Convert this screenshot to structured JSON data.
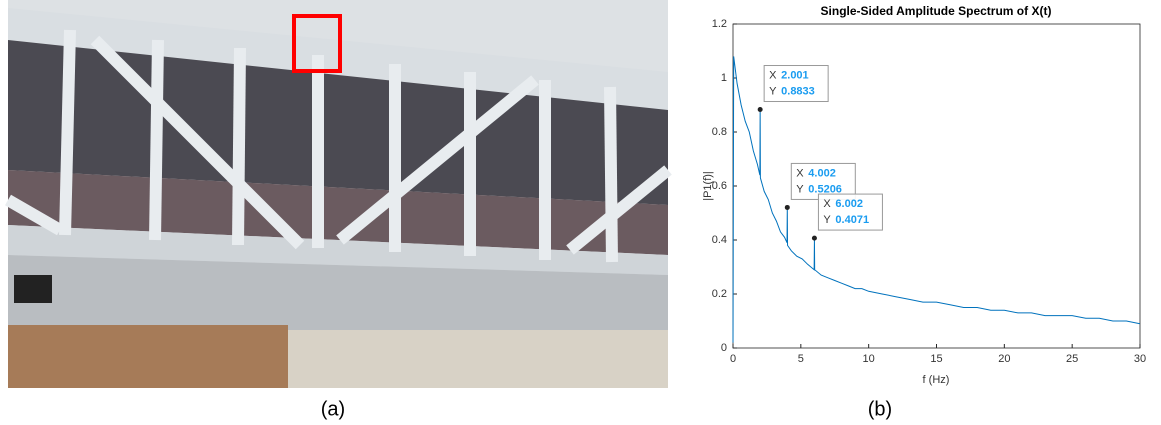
{
  "captions": [
    "(a)",
    "(b)"
  ],
  "chart_data": {
    "type": "line",
    "title": "Single-Sided Amplitude Spectrum of X(t)",
    "x_label": "f (Hz)",
    "y_label": "|P1(f)|",
    "x": [
      0,
      0.05,
      0.3,
      0.6,
      0.9,
      1.2,
      1.5,
      1.8,
      1.98,
      2.001,
      2.02,
      2.3,
      2.6,
      2.9,
      3.2,
      3.5,
      3.8,
      3.98,
      4.002,
      4.02,
      4.3,
      4.7,
      5.1,
      5.5,
      5.98,
      6.002,
      6.02,
      6.5,
      7,
      7.5,
      8,
      8.5,
      9,
      9.5,
      10,
      11,
      12,
      13,
      14,
      15,
      16,
      17,
      18,
      19,
      20,
      21,
      22,
      23,
      24,
      25,
      26,
      27,
      28,
      29,
      30
    ],
    "series": [
      {
        "color": "#0072bd",
        "values": [
          0.02,
          1.08,
          0.98,
          0.9,
          0.84,
          0.8,
          0.73,
          0.68,
          0.64,
          0.8833,
          0.63,
          0.58,
          0.55,
          0.5,
          0.47,
          0.43,
          0.41,
          0.39,
          0.5206,
          0.38,
          0.36,
          0.34,
          0.33,
          0.31,
          0.29,
          0.4071,
          0.29,
          0.27,
          0.26,
          0.25,
          0.24,
          0.23,
          0.22,
          0.22,
          0.21,
          0.2,
          0.19,
          0.18,
          0.17,
          0.17,
          0.16,
          0.15,
          0.15,
          0.14,
          0.14,
          0.13,
          0.13,
          0.12,
          0.12,
          0.12,
          0.11,
          0.11,
          0.1,
          0.1,
          0.09
        ]
      }
    ],
    "xlim": [
      0,
      30
    ],
    "xticks": [
      0,
      5,
      10,
      15,
      20,
      25,
      30
    ],
    "ylim": [
      0,
      1.2
    ],
    "yticks": [
      0,
      0.2,
      0.4,
      0.6,
      0.8,
      1,
      1.2
    ],
    "grid": false,
    "datatip_labels": [
      "X",
      "Y"
    ],
    "datatips": [
      {
        "x": 2.001,
        "y": 0.8833
      },
      {
        "x": 4.002,
        "y": 0.5206
      },
      {
        "x": 6.002,
        "y": 0.4071
      }
    ]
  }
}
